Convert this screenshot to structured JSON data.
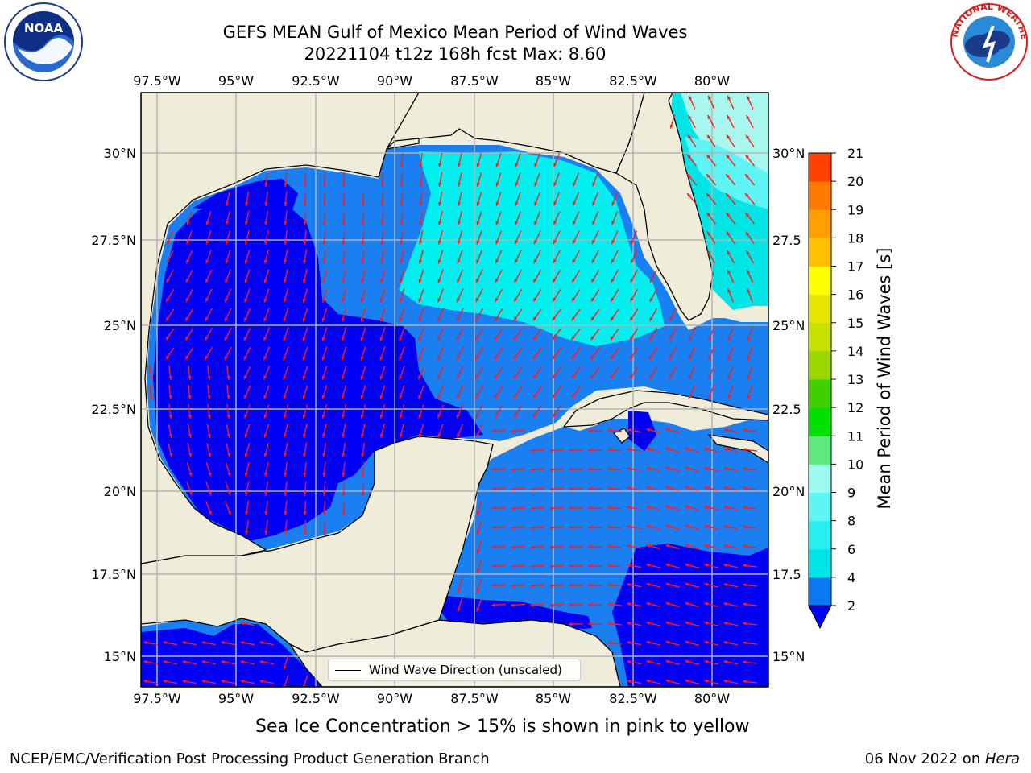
{
  "title": {
    "line1": "GEFS MEAN Gulf of Mexico Mean Period of Wind Waves",
    "line2": "20221104 t12z 168h fcst   Max: 8.60"
  },
  "map": {
    "lon_ticks": [
      "97.5°W",
      "95°W",
      "92.5°W",
      "90°W",
      "87.5°W",
      "85°W",
      "82.5°W",
      "80°W"
    ],
    "lat_ticks_left": [
      "30°N",
      "27.5°N",
      "25°N",
      "22.5°N",
      "20°N",
      "17.5°N",
      "15°N"
    ],
    "lat_ticks_right": [
      "30°N",
      "27.5",
      "25°N",
      "22.5",
      "20°N",
      "17.5",
      "15°N"
    ],
    "land_color": "#efedda",
    "vector_color": "#ff1a1a",
    "legend_label": "Wind Wave Direction (unscaled)"
  },
  "colorbar": {
    "label": "Mean Period of Wind Waves [s]",
    "ticks": [
      "2",
      "4",
      "6",
      "8",
      "9",
      "10",
      "11",
      "12",
      "13",
      "14",
      "15",
      "16",
      "17",
      "18",
      "19",
      "20",
      "21"
    ],
    "colors": [
      "#0a78f0",
      "#00e6e6",
      "#28f0f0",
      "#5ff5f5",
      "#9ef8ef",
      "#5ee87e",
      "#00e000",
      "#40d000",
      "#9ad800",
      "#c8e200",
      "#e6e600",
      "#ffff00",
      "#ffc000",
      "#ffa000",
      "#ff7a00",
      "#ff4000",
      "#ff0000"
    ],
    "under_color": "#0000ff"
  },
  "note": "Sea Ice Concentration > 15% is shown in pink to yellow",
  "footer": {
    "left": "NCEP/EMC/Verification Post Processing Product Generation Branch",
    "right_date": "06 Nov 2022 on ",
    "right_host": "Hera"
  },
  "logos": {
    "noaa": "NOAA",
    "nws": "NATIONAL WEATHER SERVICE"
  }
}
